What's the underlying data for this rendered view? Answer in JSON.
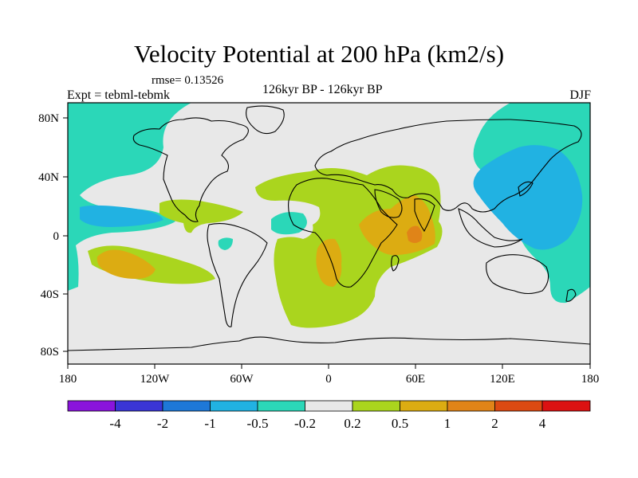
{
  "title": "Velocity Potential at 200 hPa (km2/s)",
  "rmse": "rmse= 0.13526",
  "expt": "Expt = tebml-tebmk",
  "period": "126kyr BP - 126kyr BP",
  "season": "DJF",
  "axes": {
    "x_ticks": [
      "180",
      "120W",
      "60W",
      "0",
      "60E",
      "120E",
      "180"
    ],
    "y_ticks": [
      "80N",
      "40N",
      "0",
      "40S",
      "80S"
    ]
  },
  "colorbar": {
    "labels": [
      "-4",
      "-2",
      "-1",
      "-0.5",
      "-0.2",
      "0.2",
      "0.5",
      "1",
      "2",
      "4"
    ],
    "colors": [
      "#8a14dc",
      "#3a35d6",
      "#1e78d8",
      "#21b2e2",
      "#2bd7b8",
      "#e8e8e8",
      "#aad51e",
      "#dcac12",
      "#e08418",
      "#dc4a12",
      "#dc1212"
    ]
  },
  "palette": {
    "land_bg": "#e8e8e8",
    "teal": "#2bd7b8",
    "cyan": "#21b2e2",
    "lime": "#aad51e",
    "gold": "#dcac12",
    "orange": "#e08418"
  }
}
